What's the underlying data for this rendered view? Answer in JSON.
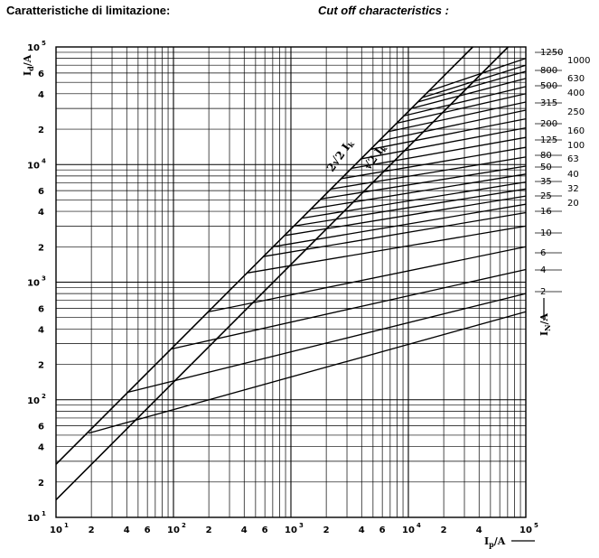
{
  "header": {
    "title_it": "Caratteristiche di limitazione:",
    "title_en": "Cut off characteristics :"
  },
  "chart_data": {
    "type": "line",
    "title": "Caratteristiche di limitazione:",
    "subtitle": "Cut off characteristics :",
    "x_scale": "log",
    "y_scale": "log",
    "xlim": [
      10,
      100000
    ],
    "ylim": [
      10,
      100000
    ],
    "xlabel": "Ip/A",
    "ylabel": "Id/A",
    "rating_axis_label": "IN/A",
    "x_ticks": [
      {
        "v": 10,
        "base": "10",
        "exp": "1"
      },
      {
        "v": 20,
        "base": "2",
        "exp": ""
      },
      {
        "v": 40,
        "base": "4",
        "exp": ""
      },
      {
        "v": 60,
        "base": "6",
        "exp": ""
      },
      {
        "v": 100,
        "base": "10",
        "exp": "2"
      },
      {
        "v": 200,
        "base": "2",
        "exp": ""
      },
      {
        "v": 400,
        "base": "4",
        "exp": ""
      },
      {
        "v": 600,
        "base": "6",
        "exp": ""
      },
      {
        "v": 1000,
        "base": "10",
        "exp": "3"
      },
      {
        "v": 2000,
        "base": "2",
        "exp": ""
      },
      {
        "v": 4000,
        "base": "4",
        "exp": ""
      },
      {
        "v": 6000,
        "base": "6",
        "exp": ""
      },
      {
        "v": 10000,
        "base": "10",
        "exp": "4"
      },
      {
        "v": 20000,
        "base": "2",
        "exp": ""
      },
      {
        "v": 40000,
        "base": "4",
        "exp": ""
      },
      {
        "v": 100000,
        "base": "10",
        "exp": "5"
      }
    ],
    "y_ticks": [
      {
        "v": 10,
        "base": "10",
        "exp": "1"
      },
      {
        "v": 20,
        "base": "2",
        "exp": ""
      },
      {
        "v": 40,
        "base": "4",
        "exp": ""
      },
      {
        "v": 60,
        "base": "6",
        "exp": ""
      },
      {
        "v": 100,
        "base": "10",
        "exp": "2"
      },
      {
        "v": 200,
        "base": "2",
        "exp": ""
      },
      {
        "v": 400,
        "base": "4",
        "exp": ""
      },
      {
        "v": 600,
        "base": "6",
        "exp": ""
      },
      {
        "v": 1000,
        "base": "10",
        "exp": "3"
      },
      {
        "v": 2000,
        "base": "2",
        "exp": ""
      },
      {
        "v": 4000,
        "base": "4",
        "exp": ""
      },
      {
        "v": 6000,
        "base": "6",
        "exp": ""
      },
      {
        "v": 10000,
        "base": "10",
        "exp": "4"
      },
      {
        "v": 20000,
        "base": "2",
        "exp": ""
      },
      {
        "v": 40000,
        "base": "4",
        "exp": ""
      },
      {
        "v": 60000,
        "base": "6",
        "exp": ""
      },
      {
        "v": 100000,
        "base": "10",
        "exp": "5"
      }
    ],
    "reference_lines": [
      {
        "name": "2√2 Ik",
        "x": [
          10,
          100000
        ],
        "y": [
          28.3,
          282843
        ]
      },
      {
        "name": "√2 Ik",
        "x": [
          10,
          100000
        ],
        "y": [
          14.1,
          141421
        ]
      }
    ],
    "rating_labels_left": [
      "1250",
      "800",
      "500",
      "315",
      "200",
      "125",
      "80",
      "50",
      "35",
      "25",
      "16",
      "10",
      "6",
      "4",
      "2"
    ],
    "rating_labels_right": [
      "1000",
      "630",
      "400",
      "250",
      "160",
      "100",
      "63",
      "40",
      "32",
      "20"
    ],
    "series": [
      {
        "name": "1250",
        "x": [
          14800,
          100000
        ],
        "y": [
          42000,
          80000
        ]
      },
      {
        "name": "1000",
        "x": [
          13000,
          100000
        ],
        "y": [
          37000,
          70000
        ]
      },
      {
        "name": "800",
        "x": [
          12000,
          100000
        ],
        "y": [
          34000,
          62000
        ]
      },
      {
        "name": "630",
        "x": [
          10600,
          100000
        ],
        "y": [
          30000,
          54000
        ]
      },
      {
        "name": "500",
        "x": [
          9200,
          100000
        ],
        "y": [
          26000,
          46000
        ]
      },
      {
        "name": "400",
        "x": [
          8000,
          100000
        ],
        "y": [
          22500,
          40000
        ]
      },
      {
        "name": "315",
        "x": [
          6700,
          100000
        ],
        "y": [
          19000,
          34000
        ]
      },
      {
        "name": "250",
        "x": [
          5600,
          100000
        ],
        "y": [
          15800,
          29000
        ]
      },
      {
        "name": "200",
        "x": [
          4800,
          100000
        ],
        "y": [
          13500,
          24500
        ]
      },
      {
        "name": "160",
        "x": [
          4000,
          100000
        ],
        "y": [
          11200,
          20500
        ]
      },
      {
        "name": "125",
        "x": [
          3300,
          100000
        ],
        "y": [
          9300,
          17000
        ]
      },
      {
        "name": "100",
        "x": [
          2700,
          100000
        ],
        "y": [
          7600,
          14000
        ]
      },
      {
        "name": "80",
        "x": [
          2200,
          100000
        ],
        "y": [
          6200,
          11600
        ]
      },
      {
        "name": "63",
        "x": [
          1800,
          100000
        ],
        "y": [
          5100,
          9700
        ]
      },
      {
        "name": "50",
        "x": [
          1500,
          100000
        ],
        "y": [
          4200,
          8300
        ]
      },
      {
        "name": "40",
        "x": [
          1250,
          100000
        ],
        "y": [
          3500,
          7100
        ]
      },
      {
        "name": "35",
        "x": [
          1050,
          100000
        ],
        "y": [
          3000,
          6200
        ]
      },
      {
        "name": "32",
        "x": [
          900,
          100000
        ],
        "y": [
          2500,
          5400
        ]
      },
      {
        "name": "25",
        "x": [
          700,
          100000
        ],
        "y": [
          2000,
          4600
        ]
      },
      {
        "name": "20",
        "x": [
          580,
          100000
        ],
        "y": [
          1650,
          3900
        ]
      },
      {
        "name": "16",
        "x": [
          430,
          100000
        ],
        "y": [
          1200,
          3000
        ]
      },
      {
        "name": "10",
        "x": [
          200,
          100000
        ],
        "y": [
          560,
          2000
        ]
      },
      {
        "name": "6",
        "x": [
          95,
          100000
        ],
        "y": [
          270,
          1280
        ]
      },
      {
        "name": "4",
        "x": [
          40,
          100000
        ],
        "y": [
          115,
          800
        ]
      },
      {
        "name": "2",
        "x": [
          19,
          100000
        ],
        "y": [
          52,
          560
        ]
      }
    ]
  }
}
